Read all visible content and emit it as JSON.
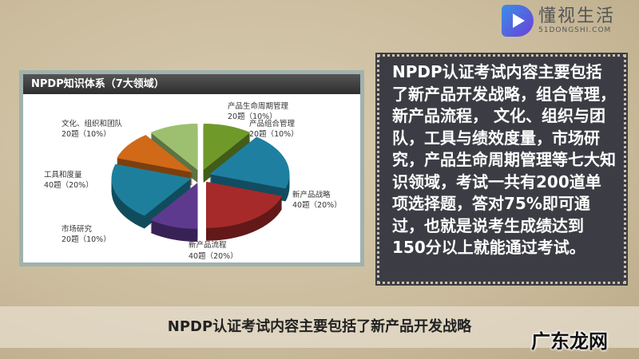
{
  "logo": {
    "name": "懂视生活",
    "domain": "51DONGSHI.COM",
    "colors": [
      "#3a8fe8",
      "#6a3fd8"
    ]
  },
  "slide": {
    "chart_title": "NPDP知识体系（7大领域）",
    "description": "NPDP认证考试内容主要包括了新产品开发战略，组合管理，新产品流程， 文化、组织与团队，工具与绩效度量，市场研究，产品生命周期管理等七大知识领域，考试一共有200道单项选择题，答对75%即可通过，也就是说考生成绩达到150分以上就能通过考试。",
    "caption": "NPDP认证考试内容主要包括了新产品开发战略"
  },
  "watermark": "广东龙网",
  "chart_data": {
    "type": "pie",
    "title": "NPDP知识体系（7大领域）",
    "slices": [
      {
        "name": "产品组合管理",
        "count": "20题",
        "value": 10,
        "color": "#6f9a2a"
      },
      {
        "name": "新产品战略",
        "count": "40题",
        "value": 20,
        "color": "#1f7fa0"
      },
      {
        "name": "新产品流程",
        "count": "40题",
        "value": 20,
        "color": "#a62a2a"
      },
      {
        "name": "市场研究",
        "count": "20题",
        "value": 10,
        "color": "#5e3a8e"
      },
      {
        "name": "工具和度量",
        "count": "40题",
        "value": 20,
        "color": "#1d7f9c"
      },
      {
        "name": "文化、组织和团队",
        "count": "20题",
        "value": 10,
        "color": "#d06a18"
      },
      {
        "name": "产品生命周期管理",
        "count": "20题",
        "value": 10,
        "color": "#9cc070"
      }
    ],
    "labels": [
      "20题（10%）",
      "40题（20%）",
      "40题（20%）",
      "20题（10%）",
      "40题（20%）",
      "20题（10%）",
      "20题（10%）"
    ]
  }
}
